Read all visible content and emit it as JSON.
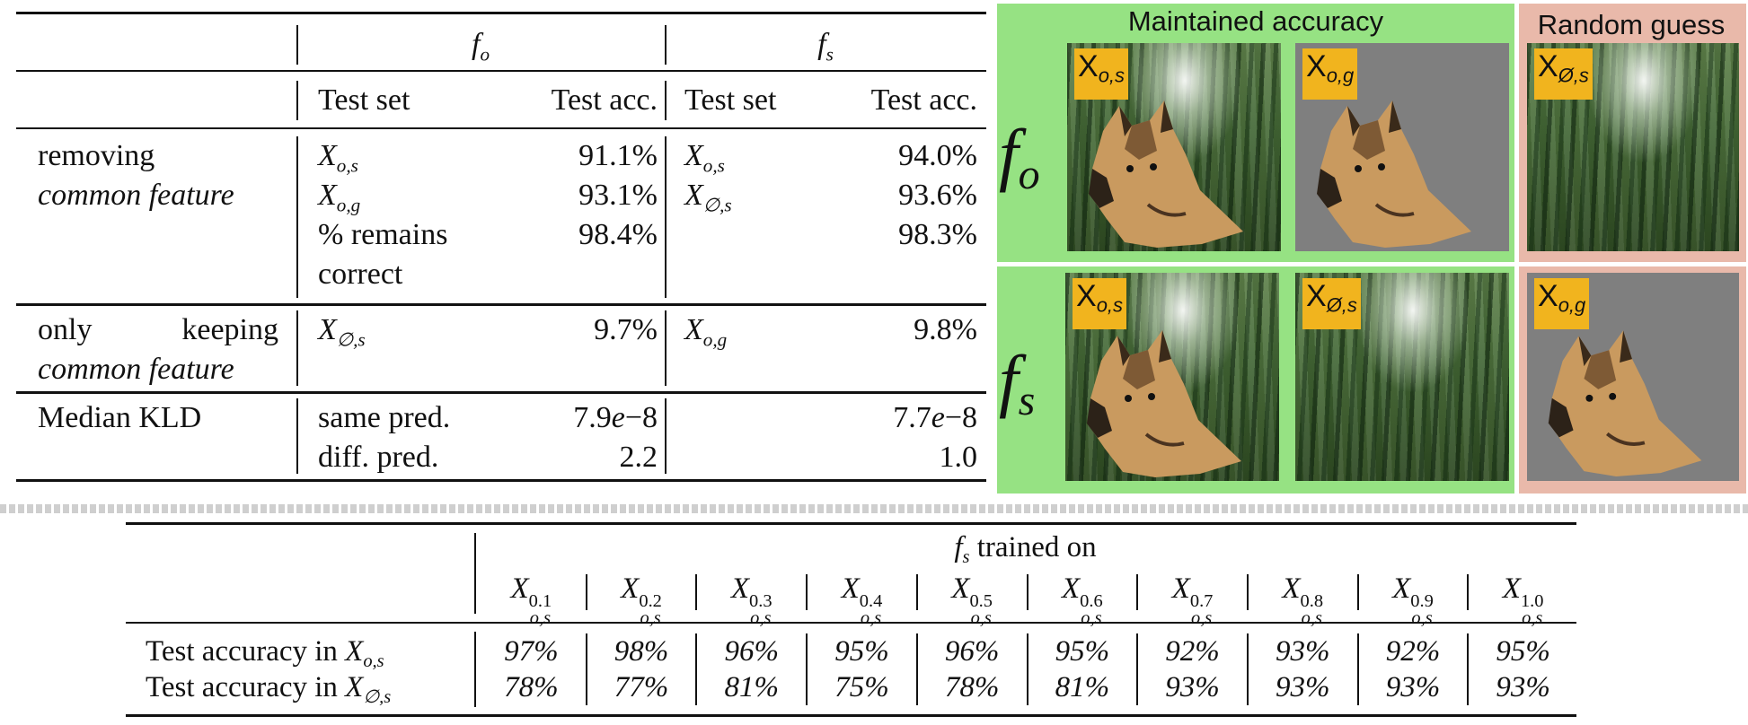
{
  "top_table": {
    "header": {
      "model1_base": "f",
      "model1_sub": "o",
      "model2_base": "f",
      "model2_sub": "s",
      "test_set": "Test set",
      "test_acc": "Test acc."
    },
    "groups": [
      {
        "label_line1": "removing",
        "label_line2": "common feature",
        "fo_rows": [
          {
            "set_base": "X",
            "set_sub": "o,s",
            "acc": "91.1%"
          },
          {
            "set_base": "X",
            "set_sub": "o,g",
            "acc": "93.1%"
          }
        ],
        "fo_extra_label_line1": "% remains",
        "fo_extra_label_line2": "correct",
        "fo_extra_acc": "98.4%",
        "fs_rows": [
          {
            "set_base": "X",
            "set_sub": "o,s",
            "acc": "94.0%"
          },
          {
            "set_base": "X",
            "set_sub": "∅,s",
            "acc": "93.6%"
          }
        ],
        "fs_extra_acc": "98.3%"
      },
      {
        "label_line1_a": "only",
        "label_line1_b": "keeping",
        "label_line2": "common feature",
        "fo_set_base": "X",
        "fo_set_sub": "∅,s",
        "fo_acc": "9.7%",
        "fs_set_base": "X",
        "fs_set_sub": "o,g",
        "fs_acc": "9.8%"
      },
      {
        "label": "Median KLD",
        "row1_label": "same pred.",
        "row1_fo_mant": "7.9",
        "row1_fo_e": "e",
        "row1_fo_exp": "−8",
        "row1_fs_mant": "7.7",
        "row1_fs_e": "e",
        "row1_fs_exp": "−8",
        "row2_label": "diff. pred.",
        "row2_fo": "2.2",
        "row2_fs": "1.0"
      }
    ]
  },
  "image_grid": {
    "maintained_title": "Maintained accuracy",
    "random_title": "Random guess",
    "row_fo": {
      "base": "f",
      "sub": "o"
    },
    "row_fs": {
      "base": "f",
      "sub": "s"
    },
    "tags": {
      "fo_maint_1": {
        "base": "X",
        "sub": "o,s"
      },
      "fo_maint_2": {
        "base": "X",
        "sub": "o,g"
      },
      "fo_random": {
        "base": "X",
        "sub": "Ø,s"
      },
      "fs_maint_1": {
        "base": "X",
        "sub": "o,s"
      },
      "fs_maint_2": {
        "base": "X",
        "sub": "Ø,s"
      },
      "fs_random": {
        "base": "X",
        "sub": "o,g"
      }
    },
    "colors": {
      "maintained_bg": "#96e283",
      "random_bg": "#e9b9aa",
      "tag_bg": "#f1b41e",
      "gray_bg": "#7f7f7f"
    }
  },
  "bottom_table": {
    "header_base": "f",
    "header_sub": "s",
    "header_rest": " trained on",
    "columns": [
      {
        "base": "X",
        "sup": "0.1",
        "sub": "o,s"
      },
      {
        "base": "X",
        "sup": "0.2",
        "sub": "o,s"
      },
      {
        "base": "X",
        "sup": "0.3",
        "sub": "o,s"
      },
      {
        "base": "X",
        "sup": "0.4",
        "sub": "o,s"
      },
      {
        "base": "X",
        "sup": "0.5",
        "sub": "o,s"
      },
      {
        "base": "X",
        "sup": "0.6",
        "sub": "o,s"
      },
      {
        "base": "X",
        "sup": "0.7",
        "sub": "o,s"
      },
      {
        "base": "X",
        "sup": "0.8",
        "sub": "o,s"
      },
      {
        "base": "X",
        "sup": "0.9",
        "sub": "o,s"
      },
      {
        "base": "X",
        "sup": "1.0",
        "sub": "o,s"
      }
    ],
    "rows": [
      {
        "label": "Test accuracy in ",
        "label_base": "X",
        "label_sub": "o,s",
        "values": [
          "97%",
          "98%",
          "96%",
          "95%",
          "96%",
          "95%",
          "92%",
          "93%",
          "92%",
          "95%"
        ]
      },
      {
        "label": "Test accuracy in ",
        "label_base": "X",
        "label_sub": "∅,s",
        "values": [
          "78%",
          "77%",
          "81%",
          "75%",
          "78%",
          "81%",
          "93%",
          "93%",
          "93%",
          "93%"
        ]
      }
    ]
  }
}
